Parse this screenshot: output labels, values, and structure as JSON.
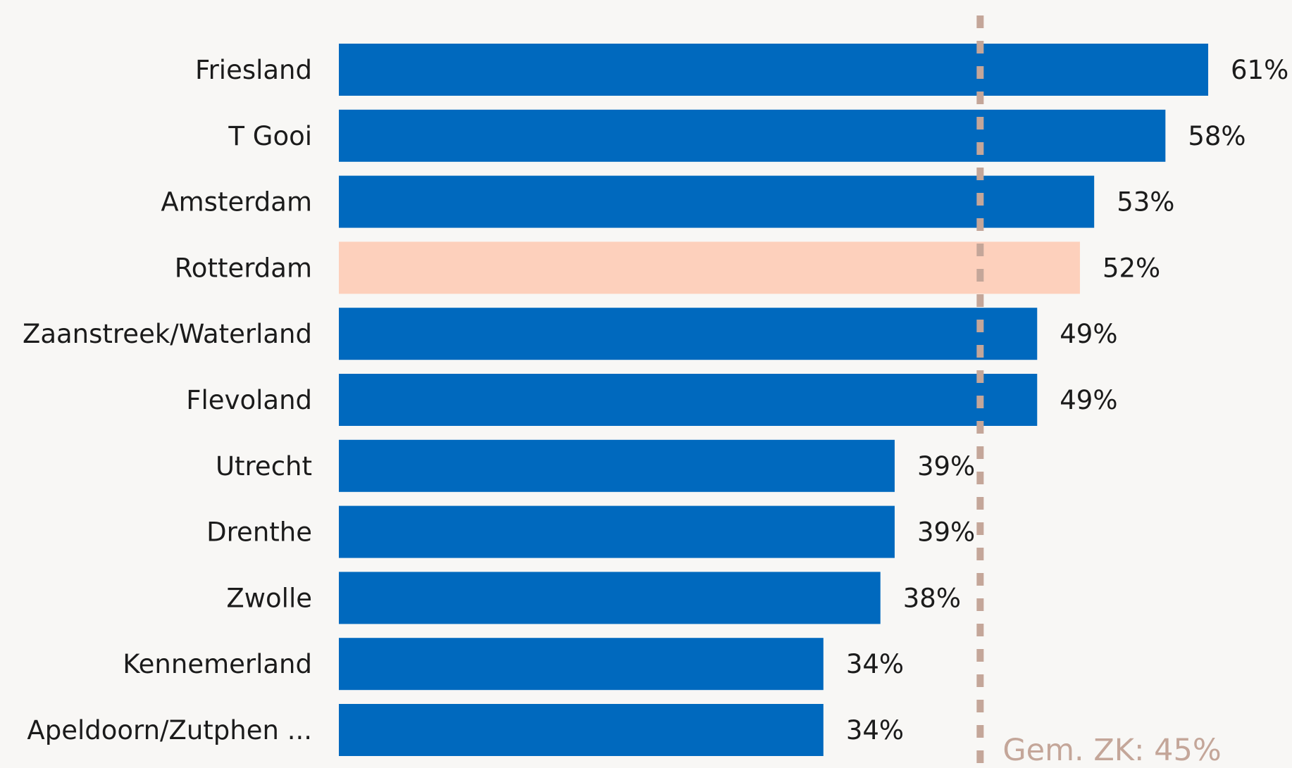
{
  "chart_data": {
    "type": "bar",
    "orientation": "horizontal",
    "categories": [
      "Friesland",
      "T Gooi",
      "Amsterdam",
      "Rotterdam",
      "Zaanstreek/Waterland",
      "Flevoland",
      "Utrecht",
      "Drenthe",
      "Zwolle",
      "Kennemerland",
      "Apeldoorn/Zutphen ..."
    ],
    "values": [
      61,
      58,
      53,
      52,
      49,
      49,
      39,
      39,
      38,
      34,
      34
    ],
    "value_labels": [
      "61%",
      "58%",
      "53%",
      "52%",
      "49%",
      "49%",
      "39%",
      "39%",
      "38%",
      "34%",
      "34%"
    ],
    "highlight_category": "Rotterdam",
    "xlim": [
      0,
      61
    ],
    "reference_line": {
      "value": 45,
      "label": "Gem. ZK: 45%",
      "style": "dotted",
      "color": "#c4a699"
    },
    "colors": {
      "bar": "#0069be",
      "highlight": "#fdd0bc",
      "text": "#1b1b1b",
      "background": "#f8f7f5"
    }
  }
}
